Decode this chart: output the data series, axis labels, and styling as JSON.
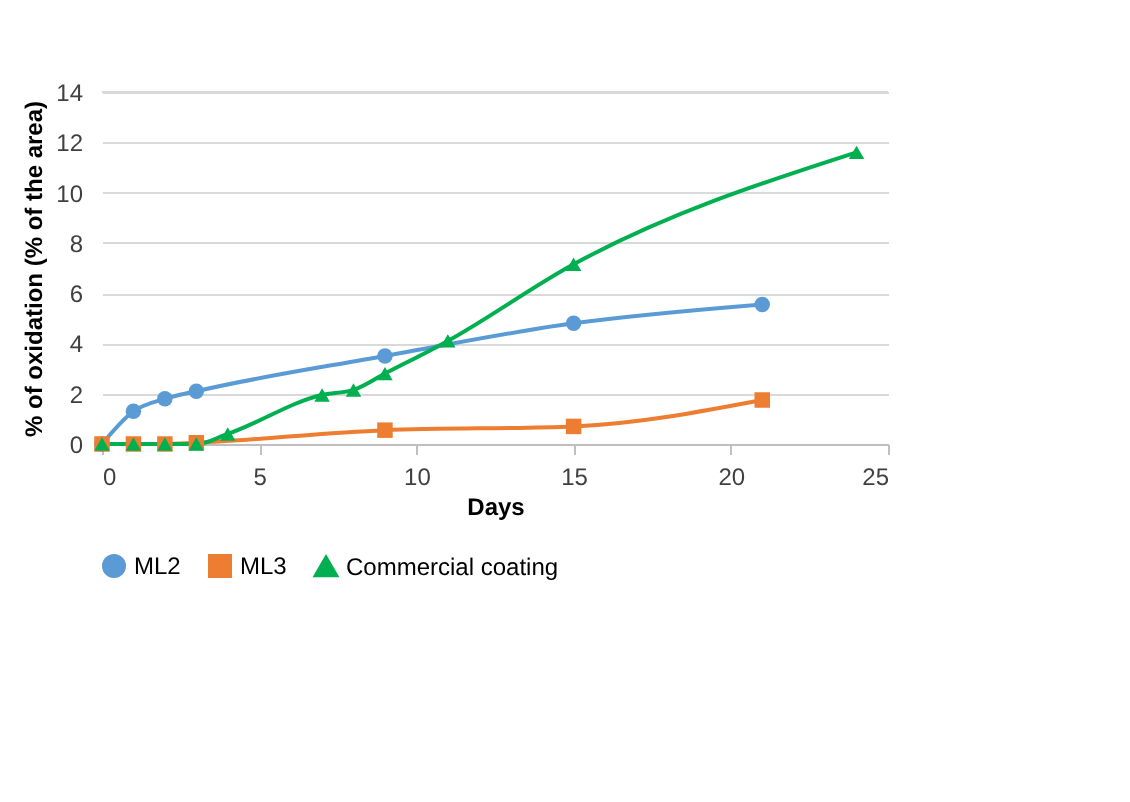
{
  "chart_data": {
    "type": "line",
    "xlabel": "Days",
    "ylabel": "% of oxidation (% of the area)",
    "xlim": [
      0,
      25
    ],
    "xticks": [
      0,
      5,
      10,
      15,
      20,
      25
    ],
    "ylim": [
      0,
      14
    ],
    "yticks": [
      0,
      2,
      4,
      6,
      8,
      10,
      12,
      14
    ],
    "grid": "y",
    "legend": "bottom",
    "line_style": "solid",
    "series": [
      {
        "name": "ML2",
        "color": "#5b9bd5",
        "marker": "circle",
        "x": [
          0,
          1,
          2,
          3,
          9,
          15,
          21
        ],
        "values": [
          0,
          1.3,
          1.8,
          2.1,
          3.5,
          4.8,
          5.55
        ]
      },
      {
        "name": "ML3",
        "color": "#ed7d31",
        "marker": "square",
        "x": [
          0,
          1,
          2,
          3,
          9,
          15,
          21
        ],
        "values": [
          0,
          0,
          0,
          0.05,
          0.55,
          0.7,
          1.75
        ]
      },
      {
        "name": "Commercial coating",
        "color": "#00b050",
        "marker": "triangle",
        "x": [
          0,
          1,
          2,
          3,
          4,
          7,
          8,
          9,
          11,
          15,
          24
        ],
        "values": [
          0,
          0,
          0,
          0,
          0.4,
          1.95,
          2.15,
          2.8,
          4.1,
          7.15,
          11.6
        ]
      }
    ]
  }
}
